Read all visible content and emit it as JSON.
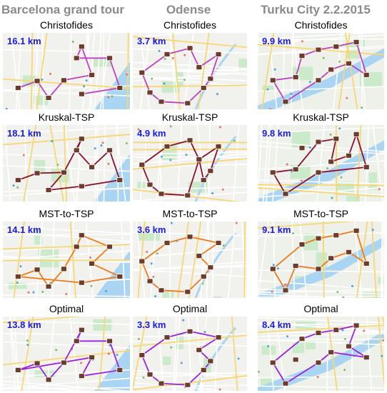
{
  "columns": [
    {
      "title": "Barcelona grand tour",
      "map_style": "barcelona",
      "panels": [
        {
          "algorithm": "Christofides",
          "distance": "16.1 km",
          "route_color": "#c040c0"
        },
        {
          "algorithm": "Kruskal-TSP",
          "distance": "18.1 km",
          "route_color": "#8b1030"
        },
        {
          "algorithm": "MST-to-TSP",
          "distance": "14.1 km",
          "route_color": "#f07a1a"
        },
        {
          "algorithm": "Optimal",
          "distance": "13.8 km",
          "route_color": "#9a22e0"
        }
      ]
    },
    {
      "title": "Odense",
      "map_style": "odense",
      "panels": [
        {
          "algorithm": "Christofides",
          "distance": "3.7 km",
          "route_color": "#c040c0"
        },
        {
          "algorithm": "Kruskal-TSP",
          "distance": "4.9 km",
          "route_color": "#8b1030"
        },
        {
          "algorithm": "MST-to-TSP",
          "distance": "3.6 km",
          "route_color": "#f07a1a"
        },
        {
          "algorithm": "Optimal",
          "distance": "3.3 km",
          "route_color": "#9a22e0"
        }
      ]
    },
    {
      "title": "Turku City 2.2.2015",
      "map_style": "turku",
      "panels": [
        {
          "algorithm": "Christofides",
          "distance": "9.9 km",
          "route_color": "#c040c0"
        },
        {
          "algorithm": "Kruskal-TSP",
          "distance": "9.8 km",
          "route_color": "#8b1030"
        },
        {
          "algorithm": "MST-to-TSP",
          "distance": "9.1 km",
          "route_color": "#f07a1a"
        },
        {
          "algorithm": "Optimal",
          "distance": "8.4 km",
          "route_color": "#9a22e0"
        }
      ]
    }
  ],
  "colors": {
    "column_title": "#8a8a8a",
    "distance_label": "#1a1ae6",
    "poi_marker": "#6b3d2a",
    "water": "#a9d4f2",
    "park": "#c6e9c5"
  }
}
